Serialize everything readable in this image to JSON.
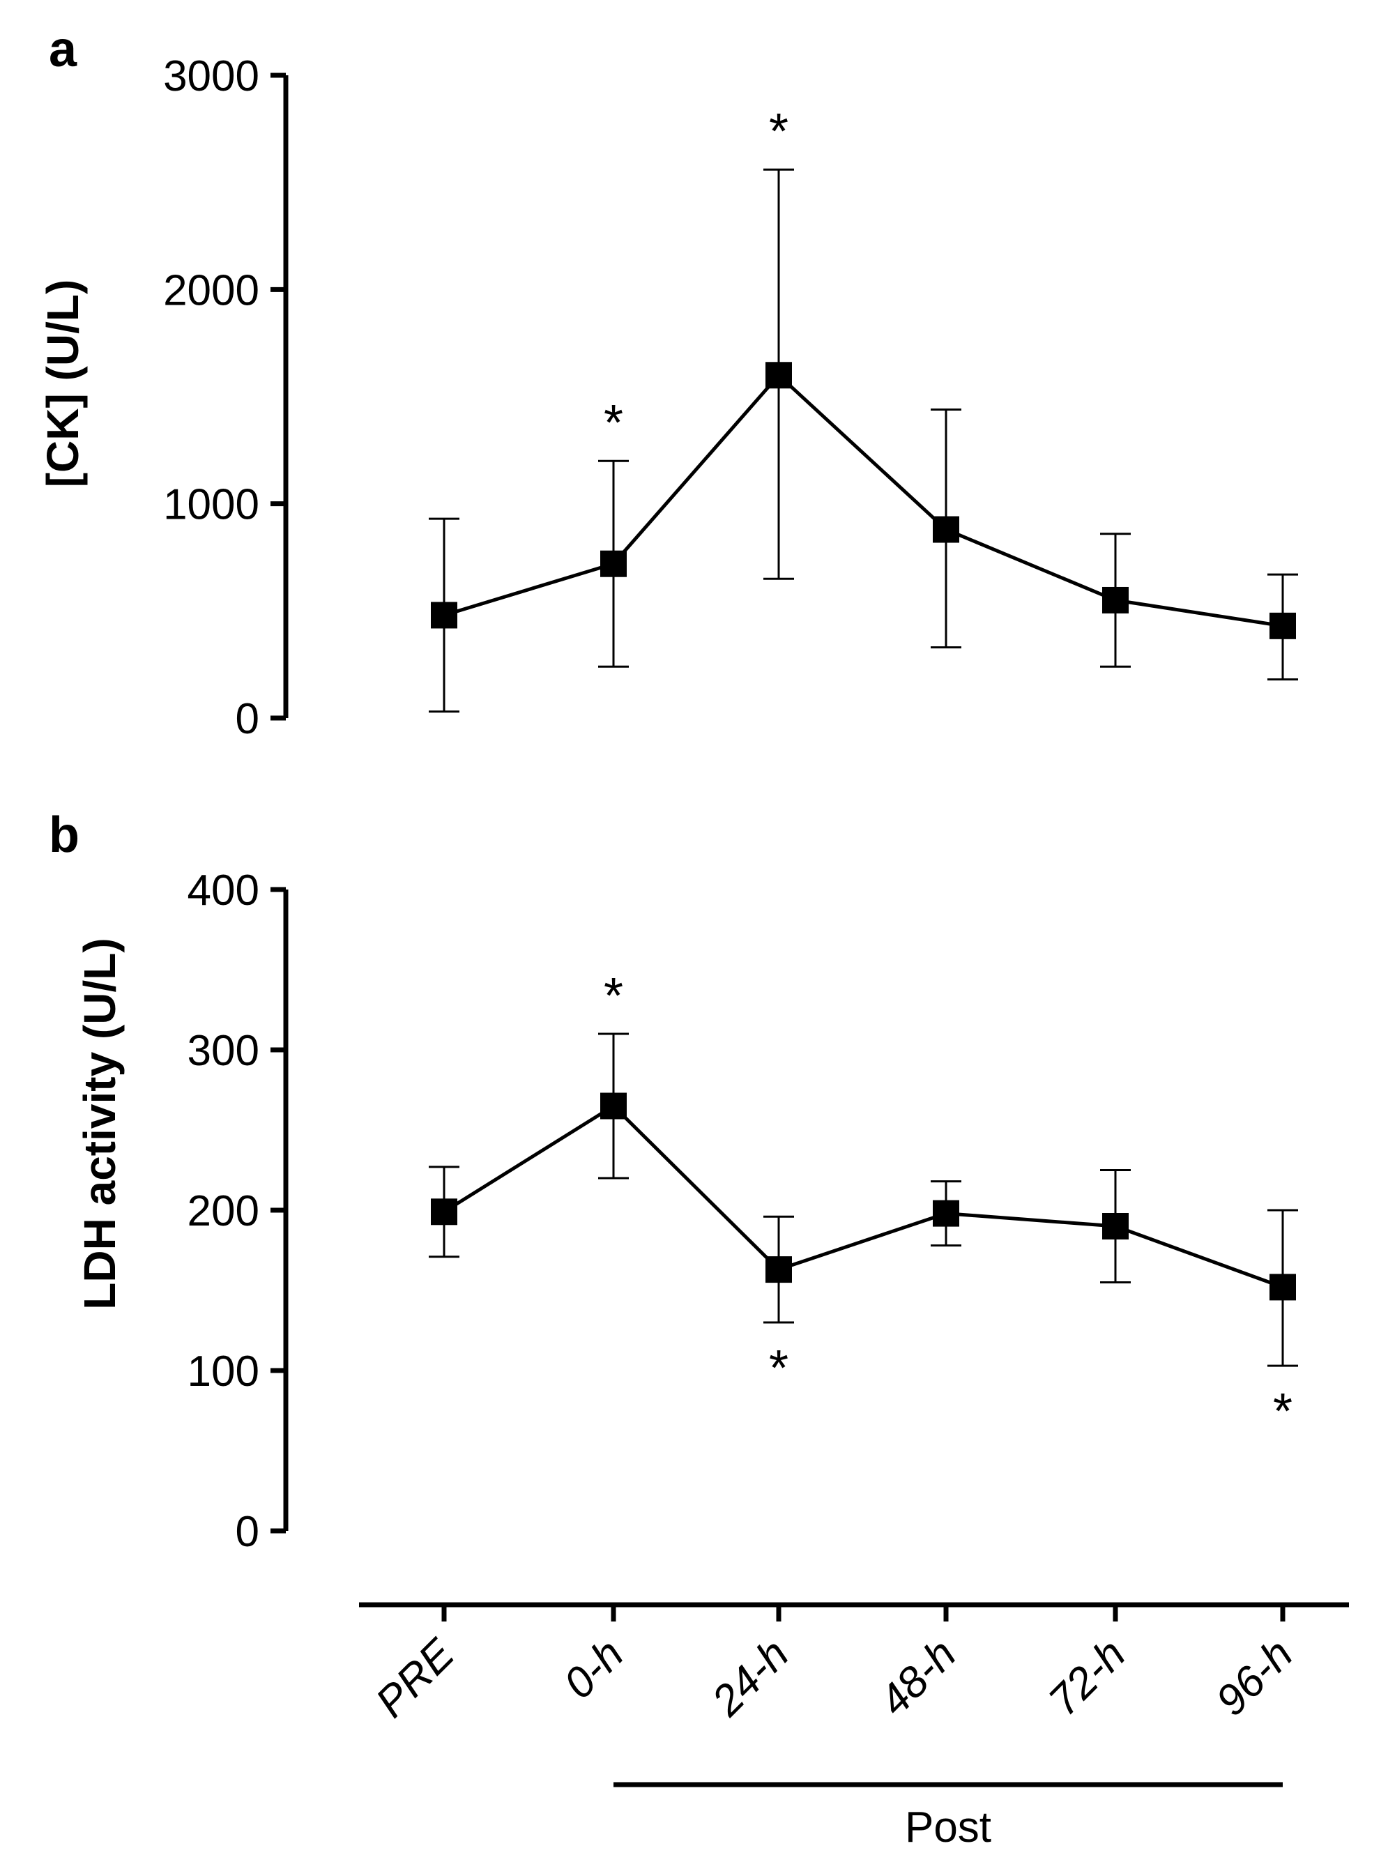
{
  "chart_data": [
    {
      "panel": "a",
      "type": "line",
      "ylabel": "[CK] (U/L)",
      "ylim": [
        0,
        3000
      ],
      "yticks": [
        0,
        1000,
        2000,
        3000
      ],
      "categories": [
        "PRE",
        "0-h",
        "24-h",
        "48-h",
        "72-h",
        "96-h"
      ],
      "series": [
        {
          "name": "CK",
          "values": [
            480,
            720,
            1600,
            880,
            550,
            430
          ],
          "error_upper": [
            930,
            1200,
            2560,
            1440,
            860,
            670
          ],
          "error_lower": [
            30,
            240,
            650,
            330,
            240,
            180
          ]
        }
      ],
      "significance": [
        {
          "category": "0-h",
          "position": "above",
          "mark": "*"
        },
        {
          "category": "24-h",
          "position": "above",
          "mark": "*"
        }
      ]
    },
    {
      "panel": "b",
      "type": "line",
      "ylabel": "LDH activity (U/L)",
      "ylim": [
        0,
        400
      ],
      "yticks": [
        0,
        100,
        200,
        300,
        400
      ],
      "categories": [
        "PRE",
        "0-h",
        "24-h",
        "48-h",
        "72-h",
        "96-h"
      ],
      "series": [
        {
          "name": "LDH",
          "values": [
            199,
            265,
            163,
            198,
            190,
            152
          ],
          "error_upper": [
            227,
            310,
            196,
            218,
            225,
            200
          ],
          "error_lower": [
            171,
            220,
            130,
            178,
            155,
            103
          ]
        }
      ],
      "significance": [
        {
          "category": "0-h",
          "position": "above",
          "mark": "*"
        },
        {
          "category": "24-h",
          "position": "below",
          "mark": "*"
        },
        {
          "category": "96-h",
          "position": "below",
          "mark": "*"
        }
      ]
    }
  ],
  "xaxis": {
    "group_label": "Post",
    "group_range": [
      "0-h",
      "96-h"
    ]
  }
}
